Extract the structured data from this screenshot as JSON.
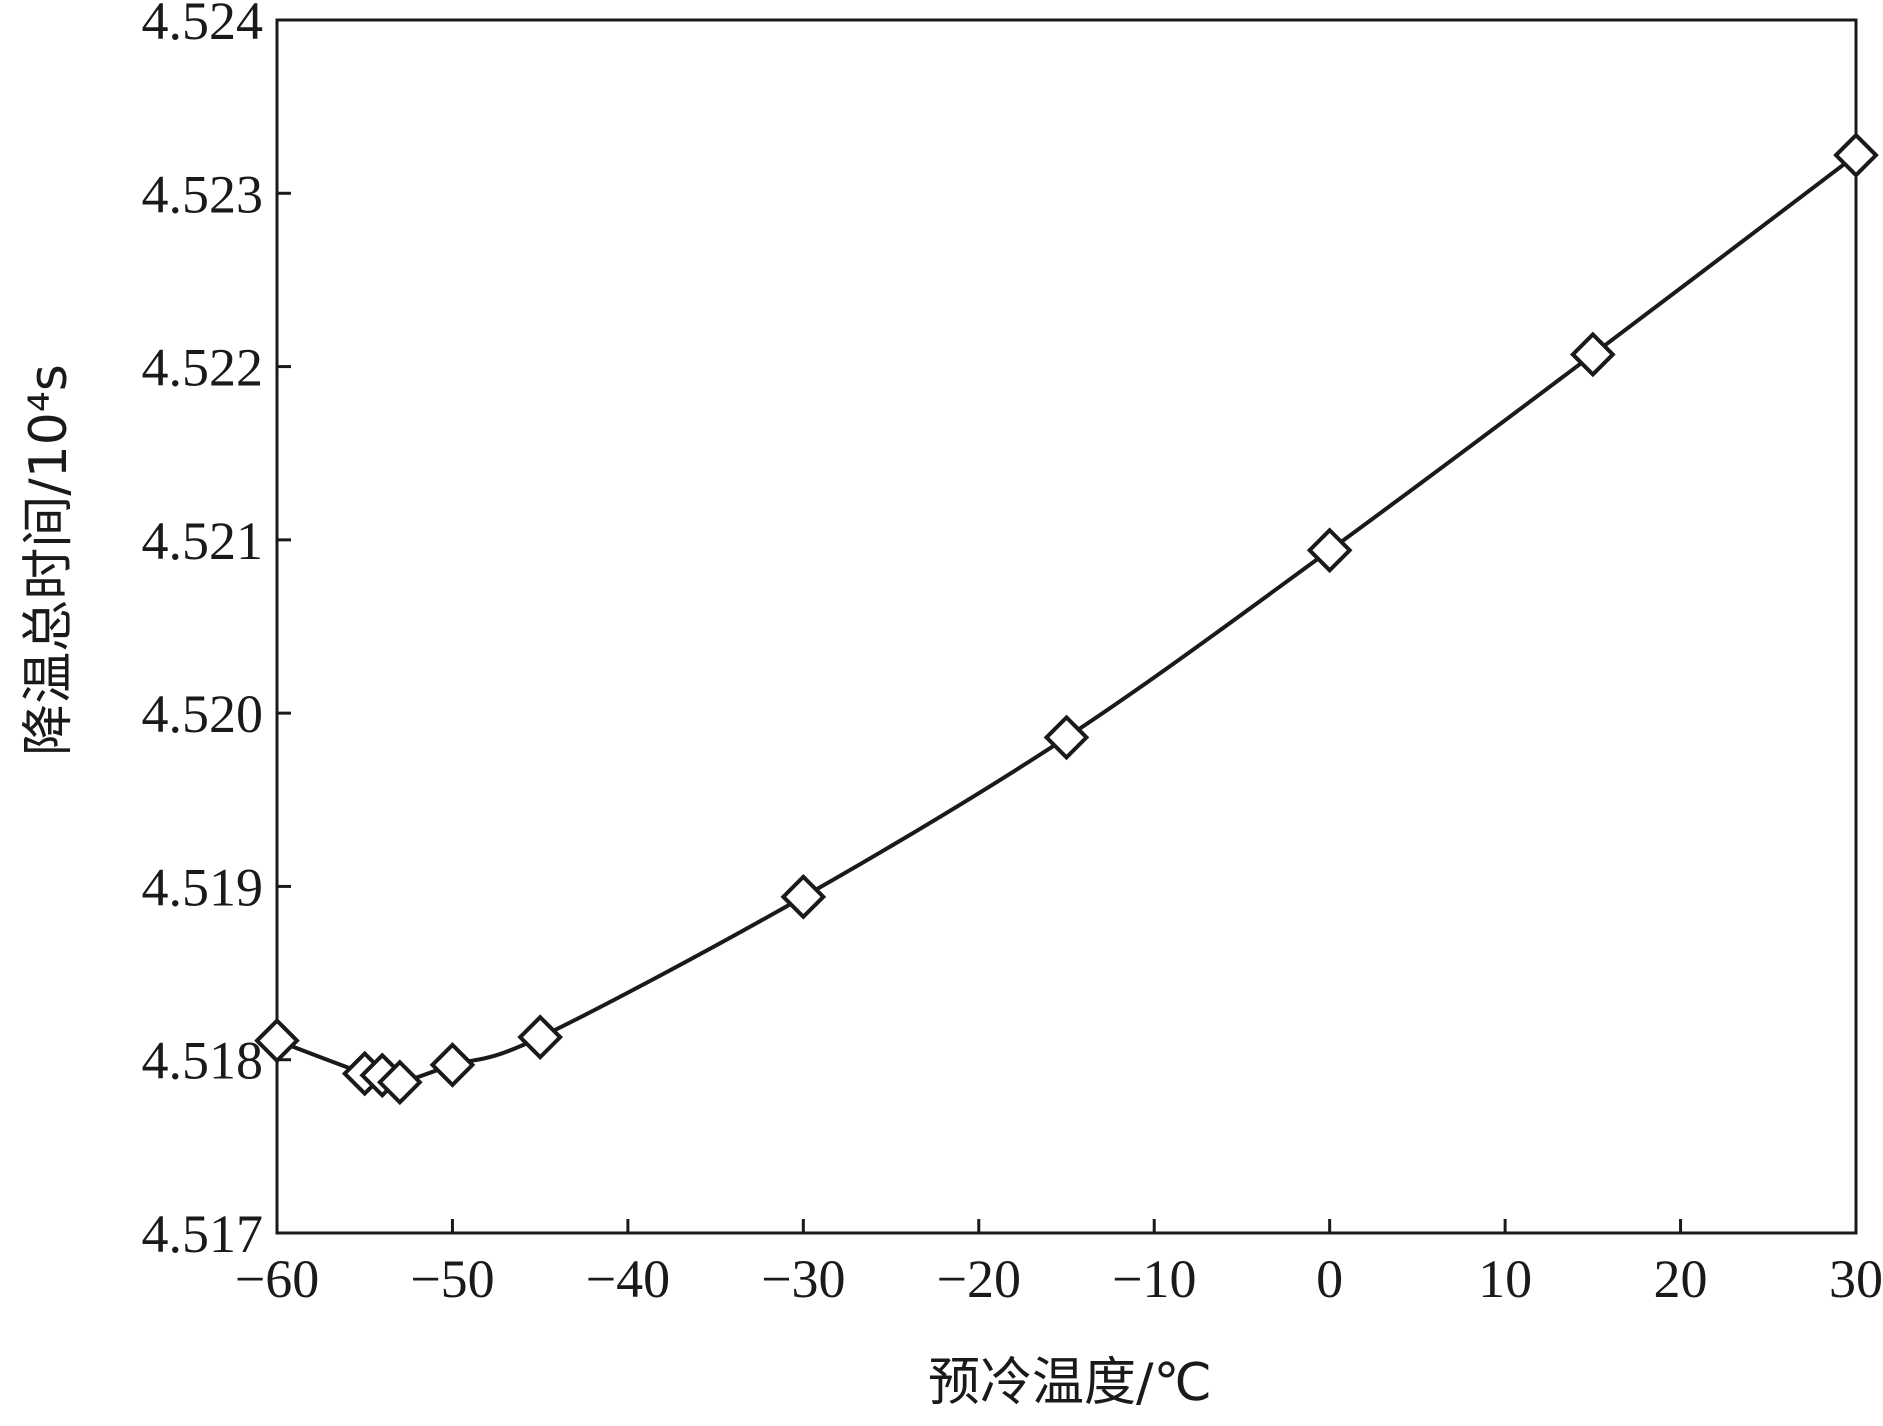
{
  "chart_data": {
    "type": "line",
    "xlabel": "预冷温度/℃",
    "ylabel": "降温总时间/10⁴s",
    "xlim": [
      -60,
      30
    ],
    "ylim": [
      4.517,
      4.524
    ],
    "x_ticks": [
      -60,
      -50,
      -40,
      -30,
      -20,
      -10,
      0,
      10,
      20,
      30
    ],
    "x_tick_labels": [
      "−60",
      "−50",
      "−40",
      "−30",
      "−20",
      "−10",
      "0",
      "10",
      "20",
      "30"
    ],
    "y_ticks": [
      4.517,
      4.518,
      4.519,
      4.52,
      4.521,
      4.522,
      4.523,
      4.524
    ],
    "y_tick_labels": [
      "4.517",
      "4.518",
      "4.519",
      "4.520",
      "4.521",
      "4.522",
      "4.523",
      "4.524"
    ],
    "grid": false,
    "marker": "diamond",
    "line_color": "#1a1a1a",
    "series": [
      {
        "x": [
          -60,
          -55,
          -54,
          -53,
          -50,
          -45,
          -30,
          -15,
          0,
          15,
          30
        ],
        "y": [
          4.51811,
          4.51792,
          4.51791,
          4.51787,
          4.51797,
          4.51813,
          4.51894,
          4.51986,
          4.52094,
          4.52207,
          4.52322
        ]
      }
    ]
  }
}
